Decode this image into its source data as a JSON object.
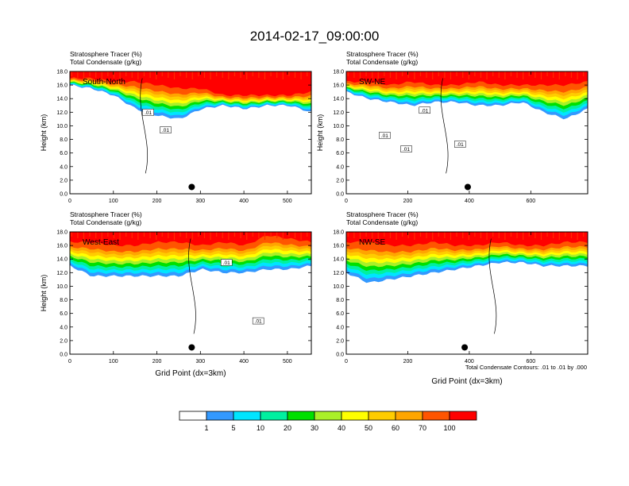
{
  "figure": {
    "title": "2014-02-17_09:00:00",
    "contour_note": "Total Condensate Contours: .01 to .01 by .000"
  },
  "colorbar": {
    "labels": [
      "1",
      "5",
      "10",
      "20",
      "30",
      "40",
      "50",
      "60",
      "70",
      "100"
    ],
    "colors": [
      "#ffffff",
      "#3399ff",
      "#00e5ff",
      "#00f0a0",
      "#00e000",
      "#aaf028",
      "#ffff00",
      "#ffcc00",
      "#ffa500",
      "#ff5500",
      "#ff0000"
    ]
  },
  "chart_data": [
    {
      "type": "heatmap",
      "panel_label": "South-North",
      "header_line1": "Stratosphere Tracer   (%)",
      "header_line2": "Total Condensate   (g/kg)",
      "ylabel": "Height (km)",
      "xlabel": "",
      "xlim": [
        0,
        555
      ],
      "ylim": [
        0,
        18
      ],
      "xticks": [
        0,
        100,
        200,
        300,
        400,
        500
      ],
      "yticks": [
        "0.0",
        "2.0",
        "4.0",
        "6.0",
        "8.0",
        "10.0",
        "12.0",
        "14.0",
        "16.0",
        "18.0"
      ],
      "tracer_bottom_km": [
        16.0,
        15.5,
        14.5,
        12.5,
        11.5,
        11.0,
        12.5,
        13.0,
        12.5,
        13.0,
        13.0,
        12.0
      ],
      "red_bottom_km": [
        17.0,
        17.0,
        16.5,
        16.5,
        16.0,
        15.5,
        15.5,
        14.5,
        14.5,
        14.5,
        14.5,
        15.0
      ],
      "contour_labels": [
        {
          "text": ".01",
          "x": 180,
          "y": 12.0
        },
        {
          "text": ".01",
          "x": 220,
          "y": 9.4
        }
      ],
      "marker": {
        "x": 280,
        "y": 1.0
      }
    },
    {
      "type": "heatmap",
      "panel_label": "SW-NE",
      "header_line1": "Stratosphere Tracer   (%)",
      "header_line2": "Total Condensate   (g/kg)",
      "ylabel": "Height (km)",
      "xlabel": "",
      "xlim": [
        0,
        785
      ],
      "ylim": [
        0,
        18
      ],
      "xticks": [
        0,
        200,
        400,
        600
      ],
      "yticks": [
        "0.0",
        "2.0",
        "4.0",
        "6.0",
        "8.0",
        "10.0",
        "12.0",
        "14.0",
        "16.0",
        "18.0"
      ],
      "tracer_bottom_km": [
        15.0,
        14.0,
        13.5,
        13.0,
        13.5,
        13.5,
        13.0,
        13.0,
        13.5,
        12.0,
        11.0,
        12.5
      ],
      "red_bottom_km": [
        16.5,
        16.5,
        16.0,
        16.5,
        16.0,
        16.0,
        16.5,
        16.0,
        16.0,
        16.0,
        16.0,
        16.5
      ],
      "contour_labels": [
        {
          "text": ".01",
          "x": 255,
          "y": 12.3
        },
        {
          "text": ".01",
          "x": 125,
          "y": 8.6
        },
        {
          "text": ".01",
          "x": 195,
          "y": 6.6
        },
        {
          "text": ".01",
          "x": 370,
          "y": 7.3
        }
      ],
      "marker": {
        "x": 395,
        "y": 1.0
      }
    },
    {
      "type": "heatmap",
      "panel_label": "West-East",
      "header_line1": "Stratosphere Tracer   (%)",
      "header_line2": "Total Condensate   (g/kg)",
      "ylabel": "Height (km)",
      "xlabel": "Grid Point (dx=3km)",
      "xlim": [
        0,
        555
      ],
      "ylim": [
        0,
        18
      ],
      "xticks": [
        0,
        100,
        200,
        300,
        400,
        500
      ],
      "yticks": [
        "0.0",
        "2.0",
        "4.0",
        "6.0",
        "8.0",
        "10.0",
        "12.0",
        "14.0",
        "16.0",
        "18.0"
      ],
      "tracer_bottom_km": [
        13.0,
        11.5,
        11.5,
        11.5,
        11.5,
        11.5,
        12.5,
        12.0,
        12.0,
        12.5,
        12.5,
        13.0
      ],
      "red_bottom_km": [
        16.5,
        16.5,
        16.0,
        16.0,
        16.5,
        16.5,
        16.0,
        16.5,
        16.0,
        17.5,
        17.0,
        16.5
      ],
      "contour_labels": [
        {
          "text": ".01",
          "x": 360,
          "y": 13.5
        },
        {
          "text": ".01",
          "x": 433,
          "y": 4.9
        }
      ],
      "marker": {
        "x": 280,
        "y": 1.0
      }
    },
    {
      "type": "heatmap",
      "panel_label": "NW-SE",
      "header_line1": "Stratosphere Tracer   (%)",
      "header_line2": "Total Condensate   (g/kg)",
      "ylabel": "",
      "xlabel": "Grid Point (dx=3km)",
      "xlim": [
        0,
        785
      ],
      "ylim": [
        0,
        18
      ],
      "xticks": [
        0,
        200,
        400,
        600
      ],
      "yticks": [
        "0.0",
        "2.0",
        "4.0",
        "6.0",
        "8.0",
        "10.0",
        "12.0",
        "14.0",
        "16.0",
        "18.0"
      ],
      "tracer_bottom_km": [
        12.0,
        10.5,
        11.0,
        11.5,
        12.0,
        12.5,
        13.0,
        13.5,
        13.5,
        13.0,
        13.0,
        13.0
      ],
      "red_bottom_km": [
        16.5,
        16.5,
        16.0,
        16.0,
        16.5,
        16.0,
        16.0,
        16.5,
        16.0,
        16.0,
        16.5,
        16.5
      ],
      "contour_labels": [],
      "marker": {
        "x": 385,
        "y": 1.0
      }
    }
  ]
}
